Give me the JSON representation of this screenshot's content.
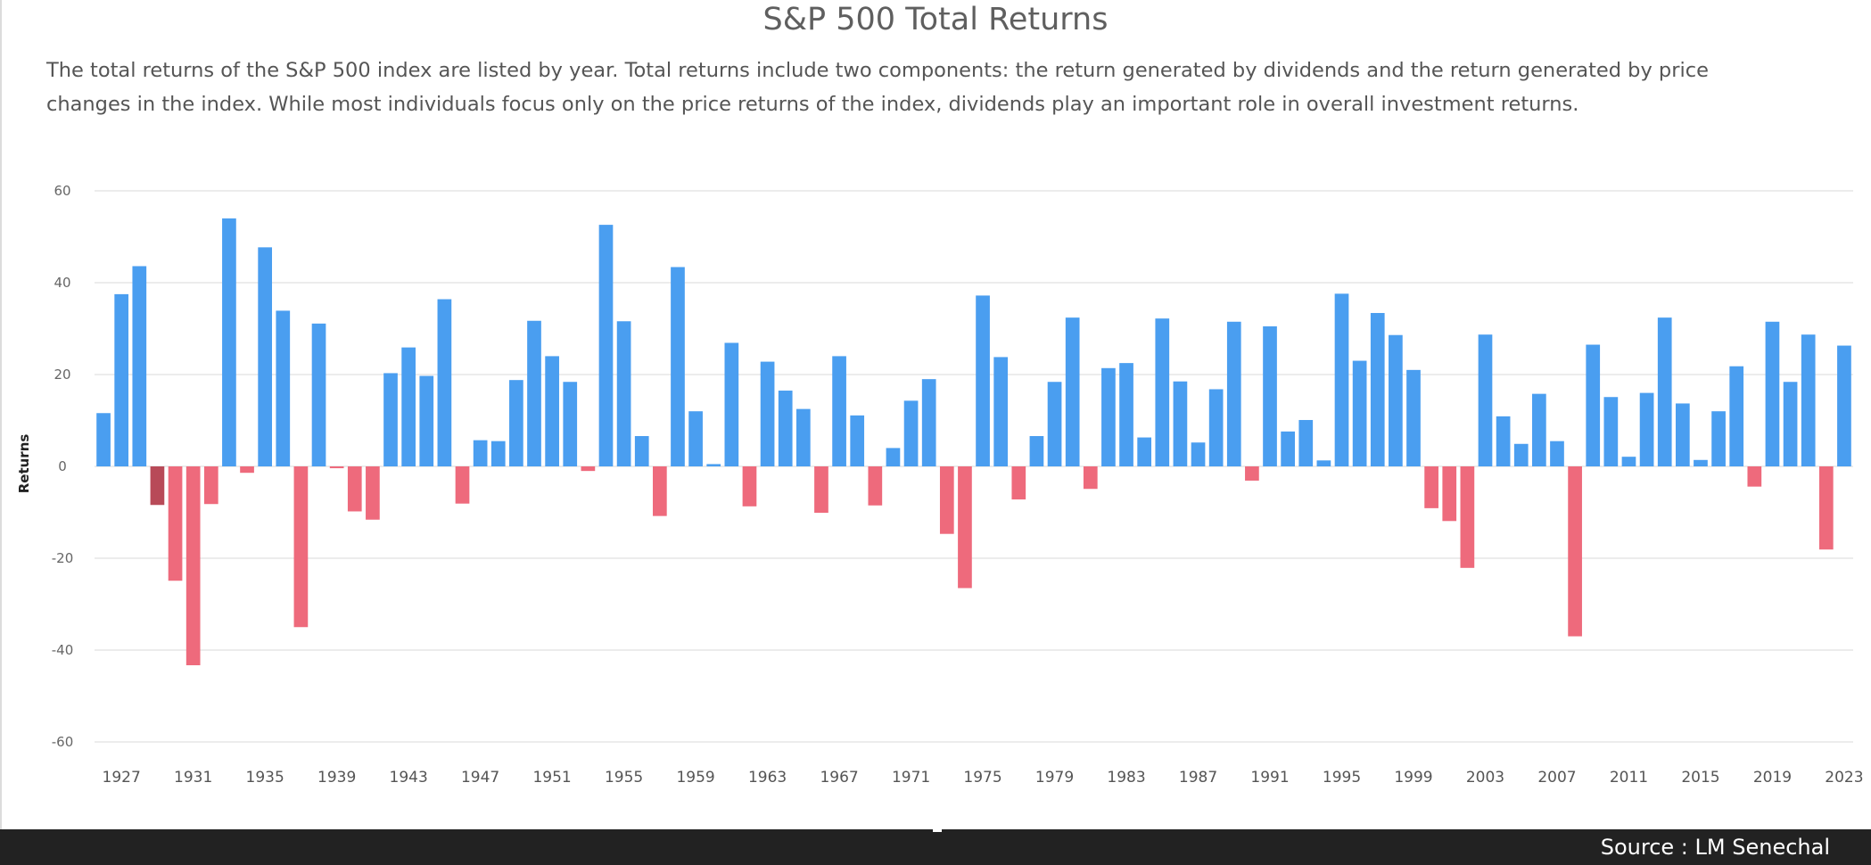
{
  "page": {
    "title": "S&P 500 Total Returns",
    "subtitle": "The total returns of the S&P 500 index are listed by year. Total returns include two components: the return generated by dividends and the return generated by price changes in the index. While most individuals focus only on the price returns of the index, dividends play an important role in overall investment returns.",
    "source": "Source : LM Senechal"
  },
  "colors": {
    "positive": "#4a9ef0",
    "negative": "#ee6a7c",
    "highlight": "#b84a58"
  },
  "chart_data": {
    "type": "bar",
    "title": "S&P 500 Total Returns",
    "xlabel": "",
    "ylabel": "Returns",
    "ylim": [
      -60,
      60
    ],
    "yticks": [
      60,
      40,
      20,
      0,
      -20,
      -40,
      -60
    ],
    "grid": true,
    "legend": "none",
    "highlight_category": "1929",
    "xtick_labels": [
      "1927",
      "1931",
      "1935",
      "1939",
      "1943",
      "1947",
      "1951",
      "1955",
      "1959",
      "1963",
      "1967",
      "1971",
      "1975",
      "1979",
      "1983",
      "1987",
      "1991",
      "1995",
      "1999",
      "2003",
      "2007",
      "2011",
      "2015",
      "2019",
      "2023"
    ],
    "categories": [
      "1926",
      "1927",
      "1928",
      "1929",
      "1930",
      "1931",
      "1932",
      "1933",
      "1934",
      "1935",
      "1936",
      "1937",
      "1938",
      "1939",
      "1940",
      "1941",
      "1942",
      "1943",
      "1944",
      "1945",
      "1946",
      "1947",
      "1948",
      "1949",
      "1950",
      "1951",
      "1952",
      "1953",
      "1954",
      "1955",
      "1956",
      "1957",
      "1958",
      "1959",
      "1960",
      "1961",
      "1962",
      "1963",
      "1964",
      "1965",
      "1966",
      "1967",
      "1968",
      "1969",
      "1970",
      "1971",
      "1972",
      "1973",
      "1974",
      "1975",
      "1976",
      "1977",
      "1978",
      "1979",
      "1980",
      "1981",
      "1982",
      "1983",
      "1984",
      "1985",
      "1986",
      "1987",
      "1988",
      "1989",
      "1990",
      "1991",
      "1992",
      "1993",
      "1994",
      "1995",
      "1996",
      "1997",
      "1998",
      "1999",
      "2000",
      "2001",
      "2002",
      "2003",
      "2004",
      "2005",
      "2006",
      "2007",
      "2008",
      "2009",
      "2010",
      "2011",
      "2012",
      "2013",
      "2014",
      "2015",
      "2016",
      "2017",
      "2018",
      "2019",
      "2020",
      "2021",
      "2022",
      "2023"
    ],
    "values": [
      11.6,
      37.5,
      43.6,
      -8.4,
      -24.9,
      -43.3,
      -8.2,
      54.0,
      -1.4,
      47.7,
      33.9,
      -35.0,
      31.1,
      -0.4,
      -9.8,
      -11.6,
      20.3,
      25.9,
      19.7,
      36.4,
      -8.1,
      5.7,
      5.5,
      18.8,
      31.7,
      24.0,
      18.4,
      -1.0,
      52.6,
      31.6,
      6.6,
      -10.8,
      43.4,
      12.0,
      0.5,
      26.9,
      -8.7,
      22.8,
      16.5,
      12.5,
      -10.1,
      24.0,
      11.1,
      -8.5,
      4.0,
      14.3,
      19.0,
      -14.7,
      -26.5,
      37.2,
      23.8,
      -7.2,
      6.6,
      18.4,
      32.4,
      -4.9,
      21.4,
      22.5,
      6.3,
      32.2,
      18.5,
      5.2,
      16.8,
      31.5,
      -3.1,
      30.5,
      7.6,
      10.1,
      1.3,
      37.6,
      23.0,
      33.4,
      28.6,
      21.0,
      -9.1,
      -11.9,
      -22.1,
      28.7,
      10.9,
      4.9,
      15.8,
      5.5,
      -37.0,
      26.5,
      15.1,
      2.1,
      16.0,
      32.4,
      13.7,
      1.4,
      12.0,
      21.8,
      -4.4,
      31.5,
      18.4,
      28.7,
      -18.1,
      26.3
    ]
  }
}
